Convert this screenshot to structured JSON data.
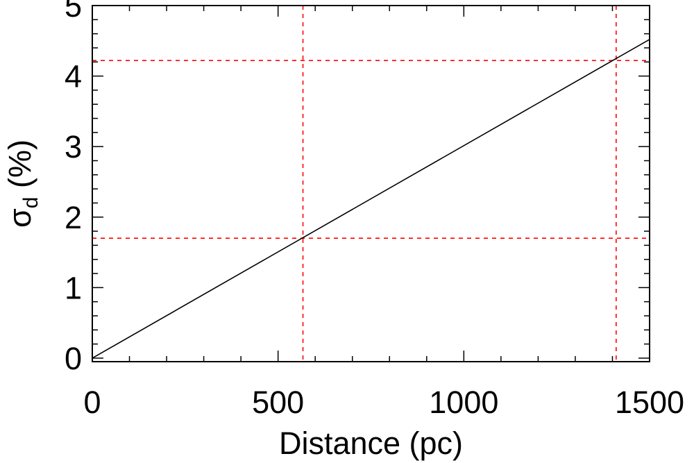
{
  "chart_data": {
    "type": "line",
    "xlabel": "Distance (pc)",
    "ylabel": "σ",
    "ylabel_subscript": "d",
    "ylabel_suffix": " (%)",
    "xlim": [
      0,
      1500
    ],
    "ylim": [
      -0.05,
      5
    ],
    "x_ticks": [
      0,
      500,
      1000,
      1500
    ],
    "y_ticks": [
      0,
      1,
      2,
      3,
      4,
      5
    ],
    "x_minor_step": 100,
    "y_minor_step": 0.2,
    "grid": false,
    "series": [
      {
        "x": [
          0,
          1500
        ],
        "y": [
          0,
          4.52
        ],
        "color": "#000000",
        "style": "solid"
      }
    ],
    "reference_lines": {
      "vertical": [
        567,
        1410
      ],
      "horizontal": [
        1.7,
        4.22
      ],
      "color": "#ff0000",
      "style": "dashed"
    }
  }
}
